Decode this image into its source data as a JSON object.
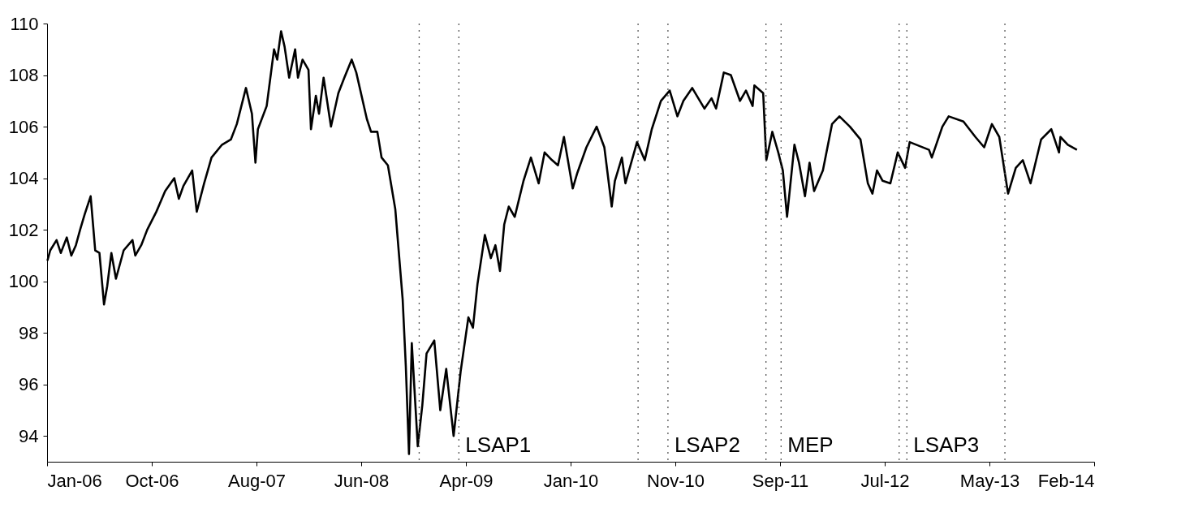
{
  "chart_data": {
    "type": "line",
    "xlim": [
      "2006-01-01",
      "2014-02-28"
    ],
    "xticks": [
      {
        "value": "2006-01-01",
        "label": "Jan-06"
      },
      {
        "value": "2006-10-26",
        "label": "Oct-06"
      },
      {
        "value": "2007-08-20",
        "label": "Aug-07"
      },
      {
        "value": "2008-06-13",
        "label": "Jun-08"
      },
      {
        "value": "2009-04-07",
        "label": "Apr-09"
      },
      {
        "value": "2010-01-30",
        "label": "Jan-10"
      },
      {
        "value": "2010-11-24",
        "label": "Nov-10"
      },
      {
        "value": "2011-09-18",
        "label": "Sep-11"
      },
      {
        "value": "2012-07-12",
        "label": "Jul-12"
      },
      {
        "value": "2013-05-06",
        "label": "May-13"
      },
      {
        "value": "2014-02-28",
        "label": "Feb-14"
      }
    ],
    "ylim": [
      93,
      110
    ],
    "yticks": [
      94,
      96,
      98,
      100,
      102,
      104,
      106,
      108,
      110
    ],
    "grid": false,
    "line_style": "solid",
    "series": [
      {
        "color": "#000000",
        "x": [
          "2006-01-02",
          "2006-01-10",
          "2006-01-28",
          "2006-02-09",
          "2006-02-26",
          "2006-03-11",
          "2006-03-24",
          "2006-04-05",
          "2006-04-18",
          "2006-05-05",
          "2006-05-18",
          "2006-05-30",
          "2006-06-12",
          "2006-06-21",
          "2006-07-03",
          "2006-07-16",
          "2006-08-07",
          "2006-09-01",
          "2006-09-09",
          "2006-09-26",
          "2006-10-13",
          "2006-11-08",
          "2006-12-03",
          "2006-12-29",
          "2007-01-11",
          "2007-01-24",
          "2007-02-18",
          "2007-03-03",
          "2007-03-24",
          "2007-04-14",
          "2007-05-14",
          "2007-06-08",
          "2007-06-25",
          "2007-07-21",
          "2007-08-07",
          "2007-08-17",
          "2007-08-24",
          "2007-09-18",
          "2007-10-09",
          "2007-10-18",
          "2007-10-29",
          "2007-11-08",
          "2007-11-21",
          "2007-12-08",
          "2007-12-16",
          "2007-12-29",
          "2008-01-15",
          "2008-01-22",
          "2008-02-05",
          "2008-02-14",
          "2008-02-27",
          "2008-03-19",
          "2008-04-09",
          "2008-04-26",
          "2008-05-17",
          "2008-05-30",
          "2008-06-29",
          "2008-07-11",
          "2008-07-29",
          "2008-08-10",
          "2008-08-28",
          "2008-09-18",
          "2008-09-27",
          "2008-10-09",
          "2008-10-18",
          "2008-10-27",
          "2008-11-04",
          "2008-11-21",
          "2008-12-04",
          "2008-12-16",
          "2009-01-07",
          "2009-01-24",
          "2009-02-10",
          "2009-03-03",
          "2009-03-23",
          "2009-04-14",
          "2009-04-27",
          "2009-05-10",
          "2009-05-31",
          "2009-06-17",
          "2009-06-30",
          "2009-07-13",
          "2009-07-25",
          "2009-08-07",
          "2009-08-24",
          "2009-09-18",
          "2009-10-09",
          "2009-10-31",
          "2009-11-17",
          "2009-12-08",
          "2009-12-25",
          "2010-01-11",
          "2010-02-05",
          "2010-02-18",
          "2010-03-16",
          "2010-04-14",
          "2010-05-06",
          "2010-05-27",
          "2010-06-05",
          "2010-06-25",
          "2010-07-05",
          "2010-08-07",
          "2010-08-29",
          "2010-09-18",
          "2010-10-14",
          "2010-11-08",
          "2010-11-30",
          "2010-12-17",
          "2011-01-11",
          "2011-02-15",
          "2011-03-07",
          "2011-03-20",
          "2011-04-11",
          "2011-05-01",
          "2011-05-27",
          "2011-06-13",
          "2011-07-02",
          "2011-07-07",
          "2011-08-01",
          "2011-08-10",
          "2011-08-27",
          "2011-09-13",
          "2011-09-26",
          "2011-10-08",
          "2011-10-29",
          "2011-11-11",
          "2011-11-28",
          "2011-12-11",
          "2011-12-24",
          "2012-01-18",
          "2012-02-13",
          "2012-03-05",
          "2012-04-04",
          "2012-05-04",
          "2012-05-25",
          "2012-06-07",
          "2012-06-20",
          "2012-07-06",
          "2012-07-28",
          "2012-08-18",
          "2012-09-08",
          "2012-09-21",
          "2012-11-15",
          "2012-11-23",
          "2012-12-23",
          "2013-01-10",
          "2013-02-21",
          "2013-03-27",
          "2013-04-21",
          "2013-05-13",
          "2013-06-03",
          "2013-06-28",
          "2013-07-20",
          "2013-08-09",
          "2013-08-31",
          "2013-09-30",
          "2013-10-29",
          "2013-11-20",
          "2013-11-24",
          "2013-12-15",
          "2014-01-10"
        ],
        "values": [
          100.8,
          101.2,
          101.6,
          101.1,
          101.7,
          101.0,
          101.4,
          102.0,
          102.6,
          103.3,
          101.2,
          101.1,
          99.1,
          99.8,
          101.1,
          100.1,
          101.2,
          101.6,
          101.0,
          101.4,
          102.0,
          102.7,
          103.5,
          104.0,
          103.2,
          103.7,
          104.3,
          102.7,
          103.8,
          104.8,
          105.3,
          105.5,
          106.1,
          107.5,
          106.5,
          104.6,
          105.9,
          106.8,
          109.0,
          108.6,
          109.7,
          109.1,
          107.9,
          109.0,
          107.9,
          108.6,
          108.2,
          105.9,
          107.2,
          106.5,
          107.9,
          106.0,
          107.3,
          107.9,
          108.6,
          108.1,
          106.3,
          105.8,
          105.8,
          104.8,
          104.5,
          102.8,
          101.3,
          99.3,
          96.7,
          93.3,
          97.6,
          93.6,
          95.2,
          97.2,
          97.7,
          95.0,
          96.6,
          94.0,
          96.5,
          98.6,
          98.2,
          99.9,
          101.8,
          100.9,
          101.4,
          100.4,
          102.2,
          102.9,
          102.5,
          103.9,
          104.8,
          103.8,
          105.0,
          104.7,
          104.5,
          105.6,
          103.6,
          104.2,
          105.2,
          106.0,
          105.2,
          102.9,
          103.9,
          104.8,
          103.8,
          105.4,
          104.7,
          105.9,
          107.0,
          107.4,
          106.4,
          107.0,
          107.5,
          106.7,
          107.1,
          106.7,
          108.1,
          108.0,
          107.0,
          107.4,
          106.8,
          107.6,
          107.3,
          104.7,
          105.8,
          105.0,
          104.3,
          102.5,
          105.3,
          104.6,
          103.3,
          104.6,
          103.5,
          104.3,
          106.1,
          106.4,
          106.0,
          105.5,
          103.8,
          103.4,
          104.3,
          103.9,
          103.8,
          105.0,
          104.4,
          105.4,
          105.1,
          104.8,
          106.0,
          106.4,
          106.2,
          105.6,
          105.2,
          106.1,
          105.6,
          103.4,
          104.4,
          104.7,
          103.8,
          105.5,
          105.9,
          105.0,
          105.6,
          105.3,
          105.1
        ]
      }
    ],
    "ref_lines": [
      {
        "axis": "x",
        "value": "2008-11-25",
        "line_style": "dotted",
        "color": "#555555"
      },
      {
        "axis": "x",
        "value": "2009-03-18",
        "line_style": "dotted",
        "color": "#555555",
        "label": "LSAP1"
      },
      {
        "axis": "x",
        "value": "2010-08-10",
        "line_style": "dotted",
        "color": "#555555"
      },
      {
        "axis": "x",
        "value": "2010-11-03",
        "line_style": "dotted",
        "color": "#555555",
        "label": "LSAP2"
      },
      {
        "axis": "x",
        "value": "2011-08-09",
        "line_style": "dotted",
        "color": "#555555"
      },
      {
        "axis": "x",
        "value": "2011-09-21",
        "line_style": "dotted",
        "color": "#555555",
        "label": "MEP"
      },
      {
        "axis": "x",
        "value": "2012-08-22",
        "line_style": "dotted",
        "color": "#555555"
      },
      {
        "axis": "x",
        "value": "2012-09-13",
        "line_style": "dotted",
        "color": "#555555",
        "label": "LSAP3"
      },
      {
        "axis": "x",
        "value": "2013-06-19",
        "line_style": "dotted",
        "color": "#555555"
      }
    ]
  }
}
